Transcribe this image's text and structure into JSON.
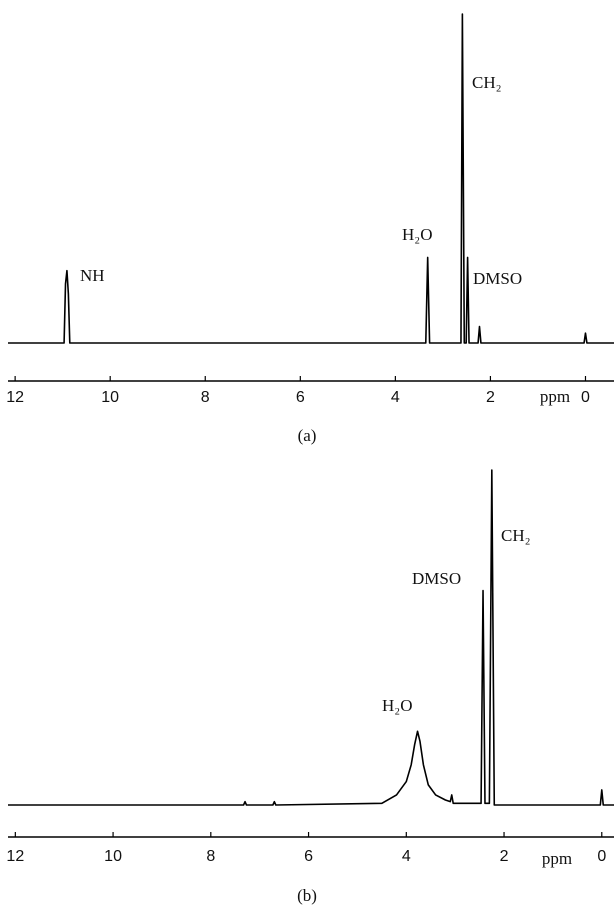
{
  "chart_data": [
    {
      "type": "line",
      "caption": "(a)",
      "x_label": "ppm",
      "color": "#000000",
      "annotations": [
        "NH",
        "H₂O",
        "CH₂",
        "DMSO"
      ],
      "xlim": [
        12.15,
        -0.6
      ],
      "ylim": [
        0,
        100
      ],
      "xticks": [
        12,
        10,
        8,
        6,
        4,
        2,
        0
      ],
      "x": [
        12.15,
        10.97,
        10.94,
        10.91,
        10.88,
        10.85,
        3.36,
        3.32,
        3.28,
        2.62,
        2.59,
        2.55,
        2.51,
        2.48,
        2.45,
        2.26,
        2.23,
        2.2,
        0.03,
        0.0,
        -0.03,
        -0.6
      ],
      "values": [
        0,
        0,
        18,
        22,
        15,
        0,
        0,
        26,
        0,
        0,
        100,
        0,
        0,
        26,
        0,
        0,
        5,
        0,
        0,
        3,
        0,
        0
      ]
    },
    {
      "type": "line",
      "caption": "(b)",
      "x_label": "ppm",
      "color": "#000000",
      "annotations": [
        "H₂O",
        "DMSO",
        "CH₂"
      ],
      "xlim": [
        12.15,
        -0.25
      ],
      "ylim": [
        0,
        100
      ],
      "xticks": [
        12,
        10,
        8,
        6,
        4,
        2,
        0
      ],
      "x": [
        12.15,
        7.33,
        7.3,
        7.27,
        6.73,
        6.7,
        6.67,
        4.5,
        4.2,
        4.0,
        3.9,
        3.83,
        3.77,
        3.72,
        3.65,
        3.55,
        3.4,
        3.2,
        3.1,
        3.07,
        3.04,
        2.47,
        2.43,
        2.39,
        2.3,
        2.25,
        2.2,
        0.03,
        0.0,
        -0.03,
        -0.25
      ],
      "values": [
        0,
        0,
        1,
        0,
        0,
        1,
        0,
        0.5,
        3,
        7,
        12,
        18,
        22,
        19,
        12,
        6,
        3,
        1.5,
        1,
        3,
        0.5,
        0.5,
        64,
        0.5,
        0.5,
        100,
        0,
        0,
        4.5,
        0,
        0
      ]
    }
  ]
}
